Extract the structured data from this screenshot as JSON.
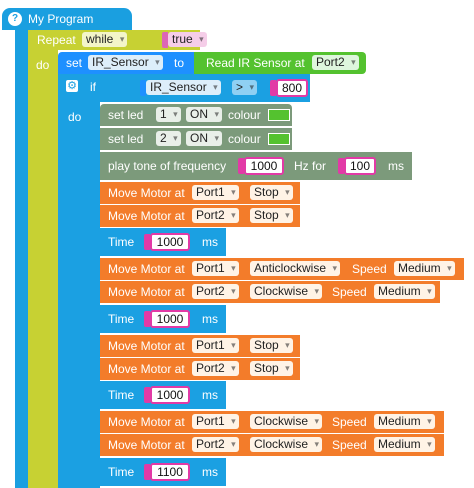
{
  "program": {
    "title": "My Program"
  },
  "loop": {
    "repeat_label": "Repeat",
    "mode": "while",
    "condition": "true",
    "do_label": "do"
  },
  "set_var": {
    "set_label": "set",
    "var": "IR_Sensor",
    "to_label": "to",
    "read_label": "Read IR Sensor at",
    "port": "Port2"
  },
  "if_block": {
    "if_label": "if",
    "var": "IR_Sensor",
    "op": ">",
    "value": "800",
    "do_label": "do"
  },
  "leds": [
    {
      "label": "set led",
      "index": "1",
      "state": "ON",
      "colour_label": "colour"
    },
    {
      "label": "set led",
      "index": "2",
      "state": "ON",
      "colour_label": "colour"
    }
  ],
  "tone": {
    "label": "play tone of frequency",
    "freq": "1000",
    "hz_label": "Hz for",
    "duration": "100",
    "ms_label": "ms"
  },
  "motor_label": "Move Motor at",
  "speed_label": "Speed",
  "time_label": "Time",
  "ms_label": "ms",
  "steps": [
    {
      "motors": [
        {
          "port": "Port1",
          "action": "Stop"
        },
        {
          "port": "Port2",
          "action": "Stop"
        }
      ],
      "time": "1000"
    },
    {
      "motors": [
        {
          "port": "Port1",
          "action": "Anticlockwise",
          "speed": "Medium"
        },
        {
          "port": "Port2",
          "action": "Clockwise",
          "speed": "Medium"
        }
      ],
      "time": "1000"
    },
    {
      "motors": [
        {
          "port": "Port1",
          "action": "Stop"
        },
        {
          "port": "Port2",
          "action": "Stop"
        }
      ],
      "time": "1000"
    },
    {
      "motors": [
        {
          "port": "Port1",
          "action": "Clockwise",
          "speed": "Medium"
        },
        {
          "port": "Port2",
          "action": "Clockwise",
          "speed": "Medium"
        }
      ],
      "time": "1100"
    }
  ],
  "colors": {
    "event": "#1a9fe0",
    "loop": "#c7d133",
    "set": "#1e90ff",
    "sensor": "#54c22f",
    "control": "#1ba0e2",
    "led": "#7c9a7b",
    "motor": "#f37c2a",
    "number_border": "#e23aa6",
    "led_colour": "#54c22f"
  }
}
